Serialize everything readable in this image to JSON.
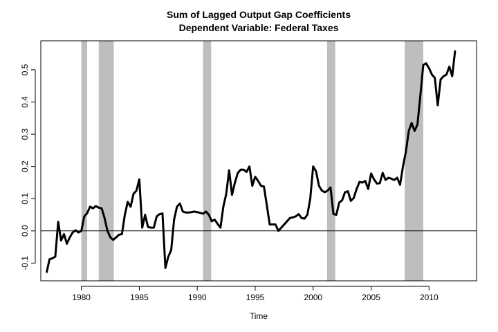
{
  "chart_data": {
    "type": "line",
    "title": "Sum of Lagged Output Gap Coefficients",
    "subtitle": "Dependent Variable: Federal Taxes",
    "xlabel": "Time",
    "ylabel": "",
    "xlim": [
      1976.5,
      2014.1
    ],
    "ylim": [
      -0.155,
      0.59
    ],
    "x_ticks": [
      1980,
      1985,
      1990,
      1995,
      2000,
      2005,
      2010
    ],
    "y_ticks": [
      -0.1,
      0.0,
      0.1,
      0.2,
      0.3,
      0.4,
      0.5
    ],
    "x_tick_labels": [
      "1980",
      "1985",
      "1990",
      "1995",
      "2000",
      "2005",
      "2010"
    ],
    "y_tick_labels": [
      "-0.1",
      "0.0",
      "0.1",
      "0.2",
      "0.3",
      "0.4",
      "0.5"
    ],
    "zero_line": 0,
    "recession_bands": [
      [
        1980.0,
        1980.5
      ],
      [
        1981.5,
        1982.8
      ],
      [
        1990.5,
        1991.2
      ],
      [
        2001.2,
        2001.9
      ],
      [
        2007.9,
        2009.5
      ]
    ],
    "colors": {
      "line": "#000000",
      "band": "#bebebe",
      "axis": "#000000"
    },
    "series": [
      {
        "x": [
          1977.0,
          1977.25,
          1977.5,
          1977.75,
          1978.0,
          1978.25,
          1978.5,
          1978.75,
          1979.0,
          1979.25,
          1979.5,
          1979.75,
          1980.0,
          1980.25,
          1980.5,
          1980.75,
          1981.0,
          1981.25,
          1981.5,
          1981.75,
          1982.0,
          1982.25,
          1982.5,
          1982.75,
          1983.0,
          1983.25,
          1983.5,
          1983.75,
          1984.0,
          1984.25,
          1984.5,
          1984.75,
          1985.0,
          1985.25,
          1985.5,
          1985.75,
          1986.0,
          1986.25,
          1986.5,
          1986.75,
          1987.0,
          1987.25,
          1987.5,
          1987.75,
          1988.0,
          1988.25,
          1988.5,
          1988.75,
          1989.0,
          1989.25,
          1989.5,
          1989.75,
          1990.0,
          1990.25,
          1990.5,
          1990.75,
          1991.0,
          1991.25,
          1991.5,
          1991.75,
          1992.0,
          1992.25,
          1992.5,
          1992.75,
          1993.0,
          1993.25,
          1993.5,
          1993.75,
          1994.0,
          1994.25,
          1994.5,
          1994.75,
          1995.0,
          1995.25,
          1995.5,
          1995.75,
          1996.0,
          1996.25,
          1996.5,
          1996.75,
          1997.0,
          1997.25,
          1997.5,
          1997.75,
          1998.0,
          1998.25,
          1998.5,
          1998.75,
          1999.0,
          1999.25,
          1999.5,
          1999.75,
          2000.0,
          2000.25,
          2000.5,
          2000.75,
          2001.0,
          2001.25,
          2001.5,
          2001.75,
          2002.0,
          2002.25,
          2002.5,
          2002.75,
          2003.0,
          2003.25,
          2003.5,
          2003.75,
          2004.0,
          2004.25,
          2004.5,
          2004.75,
          2005.0,
          2005.25,
          2005.5,
          2005.75,
          2006.0,
          2006.25,
          2006.5,
          2006.75,
          2007.0,
          2007.25,
          2007.5,
          2007.75,
          2008.0,
          2008.25,
          2008.5,
          2008.75,
          2009.0,
          2009.25,
          2009.5,
          2009.75,
          2010.0,
          2010.25,
          2010.5,
          2010.75,
          2011.0,
          2011.25,
          2011.5,
          2011.75,
          2012.0,
          2012.25
        ],
        "y": [
          -0.13,
          -0.088,
          -0.085,
          -0.08,
          0.028,
          -0.03,
          -0.01,
          -0.04,
          -0.02,
          -0.005,
          0.002,
          -0.005,
          0.0,
          0.045,
          0.055,
          0.075,
          0.07,
          0.077,
          0.072,
          0.07,
          0.04,
          0.0,
          -0.02,
          -0.028,
          -0.02,
          -0.012,
          -0.01,
          0.05,
          0.09,
          0.075,
          0.115,
          0.125,
          0.16,
          0.01,
          0.05,
          0.012,
          0.01,
          0.01,
          0.045,
          0.052,
          0.054,
          -0.115,
          -0.08,
          -0.06,
          0.035,
          0.075,
          0.085,
          0.06,
          0.057,
          0.057,
          0.058,
          0.06,
          0.058,
          0.056,
          0.053,
          0.06,
          0.05,
          0.03,
          0.035,
          0.022,
          0.01,
          0.075,
          0.115,
          0.188,
          0.112,
          0.15,
          0.18,
          0.19,
          0.19,
          0.183,
          0.2,
          0.14,
          0.168,
          0.155,
          0.14,
          0.138,
          0.08,
          0.02,
          0.02,
          0.02,
          0.0,
          0.01,
          0.02,
          0.03,
          0.04,
          0.042,
          0.045,
          0.052,
          0.04,
          0.038,
          0.05,
          0.1,
          0.2,
          0.185,
          0.14,
          0.125,
          0.12,
          0.125,
          0.135,
          0.052,
          0.05,
          0.088,
          0.095,
          0.12,
          0.123,
          0.093,
          0.102,
          0.13,
          0.152,
          0.15,
          0.155,
          0.13,
          0.178,
          0.16,
          0.147,
          0.148,
          0.18,
          0.158,
          0.165,
          0.162,
          0.158,
          0.165,
          0.143,
          0.2,
          0.245,
          0.31,
          0.335,
          0.31,
          0.33,
          0.42,
          0.515,
          0.52,
          0.505,
          0.485,
          0.475,
          0.39,
          0.47,
          0.48,
          0.485,
          0.51,
          0.48,
          0.56
        ]
      }
    ]
  }
}
